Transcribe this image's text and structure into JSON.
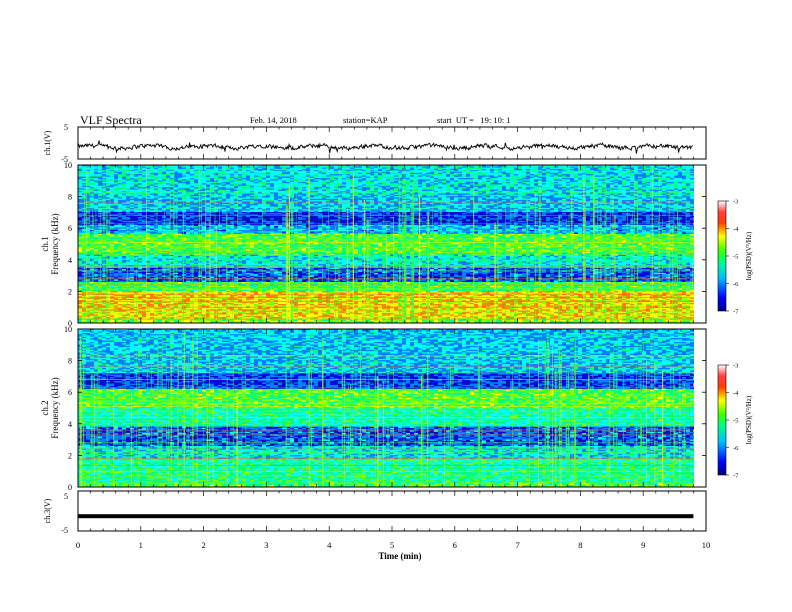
{
  "header": {
    "title": "VLF Spectra",
    "date": "Feb. 14, 2018",
    "station": "station=KAP",
    "start_ut": "start  UT =   19: 10: 1"
  },
  "chart_data": [
    {
      "type": "line",
      "panel": "ch1-waveform",
      "ylabel": "ch.1(V)",
      "ylim": [
        -5,
        5
      ],
      "yticks": [
        "-5",
        "5"
      ],
      "xlim": [
        0,
        10
      ],
      "series_color": "#000000",
      "description_values": "noisy waveform around -1 V with amplitude ~±1.5 V"
    },
    {
      "type": "heatmap",
      "panel": "ch1-spectrogram",
      "ylabel_line1": "ch.1",
      "ylabel_line2": "Frequency (kHz)",
      "ylim": [
        0,
        10
      ],
      "yticks": [
        "0",
        "2",
        "4",
        "6",
        "8",
        "10"
      ],
      "xlim": [
        0,
        9.8
      ],
      "colorbar": {
        "label": "log(PSD)(V²/Hz)",
        "range": [
          -7,
          -3
        ],
        "ticks": [
          "-3",
          "-4",
          "-5",
          "-6",
          "-7"
        ]
      }
    },
    {
      "type": "heatmap",
      "panel": "ch2-spectrogram",
      "ylabel_line1": "ch.2",
      "ylabel_line2": "Frequency (kHz)",
      "ylim": [
        0,
        10
      ],
      "yticks": [
        "0",
        "2",
        "4",
        "6",
        "8",
        "10"
      ],
      "xlim": [
        0,
        9.8
      ],
      "colorbar": {
        "label": "log(PSD)(V²/Hz)",
        "range": [
          -7,
          -3
        ],
        "ticks": [
          "-3",
          "-4",
          "-5",
          "-6",
          "-7"
        ]
      }
    },
    {
      "type": "line",
      "panel": "ch3-waveform",
      "ylabel": "ch.3(V)",
      "ylim": [
        -5,
        5
      ],
      "yticks": [
        "-5",
        "5"
      ],
      "xlim": [
        0,
        9.8
      ],
      "constant_value": -1.3,
      "series_color": "#000000"
    }
  ],
  "xaxis": {
    "label": "Time (min)",
    "ticks": [
      "0",
      "1",
      "2",
      "3",
      "4",
      "5",
      "6",
      "7",
      "8",
      "9",
      "10"
    ],
    "range": [
      0,
      10
    ]
  },
  "colormap": [
    "#000080",
    "#0000ff",
    "#0080ff",
    "#00ffff",
    "#00ff80",
    "#80ff00",
    "#ffff00",
    "#ff8000",
    "#ff0000",
    "#ff8080",
    "#ffffff"
  ]
}
